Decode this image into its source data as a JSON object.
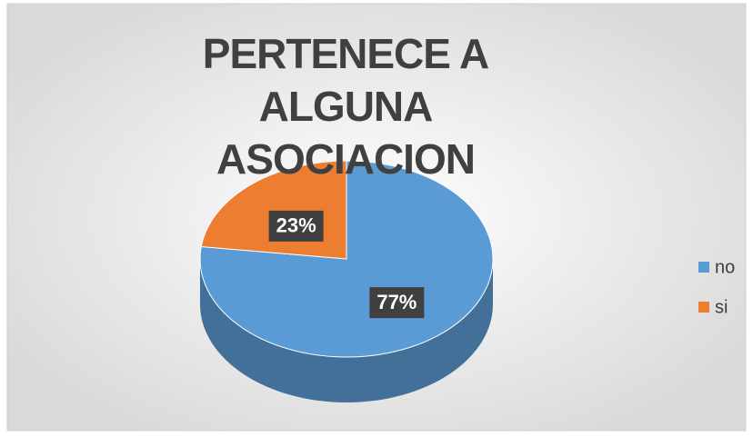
{
  "chart_data": {
    "type": "pie",
    "title": "PERTENECE A ALGUNA ASOCIACION",
    "categories": [
      "no",
      "si"
    ],
    "values": [
      77,
      23
    ],
    "value_labels": [
      "77%",
      "23%"
    ],
    "colors": [
      "#5b9bd5",
      "#ed7d31"
    ],
    "legend": "right"
  }
}
